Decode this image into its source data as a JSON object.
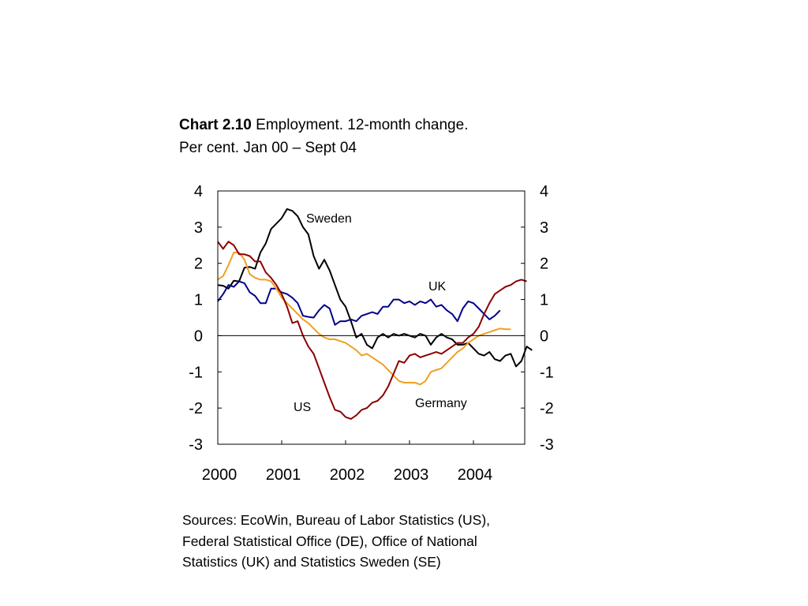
{
  "title": {
    "bold": "Chart 2.10",
    "main": "Employment. 12-month change.",
    "sub": "Per cent. Jan 00 – Sept 04"
  },
  "source": {
    "line1": "Sources: EcoWin, Bureau of Labor Statistics (US),",
    "line2": "Federal Statistical Office (DE), Office of National",
    "line3": "Statistics (UK) and Statistics Sweden (SE)"
  },
  "chart_data": {
    "type": "line",
    "title": "Chart 2.10 Employment. 12-month change.",
    "subtitle": "Per cent. Jan 00 – Sept 04",
    "xlim": [
      "2000-01",
      "2004-12"
    ],
    "ylim": [
      -3,
      4
    ],
    "yticks": [
      4,
      3,
      2,
      1,
      0,
      -1,
      -2,
      -3
    ],
    "xticks": [
      "2000",
      "2001",
      "2002",
      "2003",
      "2004"
    ],
    "zero_line": true,
    "grid": false,
    "secondary_y_axis": true,
    "series": [
      {
        "name": "Sweden",
        "color": "#000000",
        "start": "2000-01",
        "values": [
          1.4,
          1.38,
          1.3,
          1.52,
          1.5,
          1.88,
          1.9,
          1.85,
          2.3,
          2.55,
          2.95,
          3.1,
          3.25,
          3.5,
          3.45,
          3.3,
          3.0,
          2.8,
          2.2,
          1.85,
          2.1,
          1.8,
          1.4,
          1.0,
          0.8,
          0.4,
          -0.05,
          0.05,
          -0.25,
          -0.35,
          -0.05,
          0.05,
          -0.05,
          0.05,
          0.0,
          0.05,
          0.0,
          -0.05,
          0.05,
          0.0,
          -0.25,
          -0.05,
          0.05,
          -0.05,
          -0.1,
          -0.25,
          -0.25,
          -0.2,
          -0.35,
          -0.5,
          -0.55,
          -0.45,
          -0.65,
          -0.7,
          -0.55,
          -0.5,
          -0.85,
          -0.7,
          -0.3,
          -0.4
        ]
      },
      {
        "name": "UK",
        "color": "#00008b",
        "start": "2000-01",
        "values": [
          0.95,
          1.15,
          1.4,
          1.35,
          1.5,
          1.45,
          1.2,
          1.1,
          0.9,
          0.9,
          1.3,
          1.3,
          1.2,
          1.15,
          1.05,
          0.9,
          0.55,
          0.52,
          0.5,
          0.7,
          0.85,
          0.75,
          0.3,
          0.4,
          0.4,
          0.45,
          0.4,
          0.55,
          0.6,
          0.65,
          0.6,
          0.8,
          0.8,
          1.0,
          1.0,
          0.9,
          0.95,
          0.85,
          0.95,
          0.9,
          1.0,
          0.8,
          0.85,
          0.7,
          0.6,
          0.4,
          0.75,
          0.95,
          0.9,
          0.75,
          0.6,
          0.45,
          0.55,
          0.7
        ]
      },
      {
        "name": "Germany",
        "color": "#f0a020",
        "start": "2000-01",
        "values": [
          1.55,
          1.65,
          1.95,
          2.3,
          2.3,
          2.1,
          1.7,
          1.6,
          1.55,
          1.55,
          1.5,
          1.3,
          1.05,
          0.9,
          0.75,
          0.6,
          0.45,
          0.35,
          0.2,
          0.05,
          -0.05,
          -0.1,
          -0.1,
          -0.15,
          -0.2,
          -0.3,
          -0.4,
          -0.55,
          -0.5,
          -0.6,
          -0.7,
          -0.8,
          -0.95,
          -1.1,
          -1.25,
          -1.3,
          -1.3,
          -1.3,
          -1.35,
          -1.25,
          -1.0,
          -0.95,
          -0.9,
          -0.75,
          -0.6,
          -0.45,
          -0.35,
          -0.2,
          -0.1,
          0.0,
          0.05,
          0.1,
          0.15,
          0.2,
          0.18,
          0.18
        ]
      },
      {
        "name": "US",
        "color": "#8b0000",
        "start": "2000-01",
        "values": [
          2.6,
          2.4,
          2.6,
          2.5,
          2.25,
          2.25,
          2.2,
          2.05,
          2.05,
          1.75,
          1.6,
          1.4,
          1.15,
          0.8,
          0.35,
          0.4,
          0.0,
          -0.3,
          -0.5,
          -0.9,
          -1.3,
          -1.7,
          -2.05,
          -2.1,
          -2.25,
          -2.3,
          -2.2,
          -2.05,
          -2.0,
          -1.85,
          -1.8,
          -1.65,
          -1.4,
          -1.05,
          -0.7,
          -0.75,
          -0.55,
          -0.5,
          -0.6,
          -0.55,
          -0.5,
          -0.45,
          -0.5,
          -0.4,
          -0.3,
          -0.2,
          -0.2,
          -0.05,
          0.05,
          0.25,
          0.6,
          0.9,
          1.15,
          1.25,
          1.35,
          1.4,
          1.5,
          1.55,
          1.5
        ]
      }
    ],
    "series_labels": [
      "Sweden",
      "UK",
      "Germany",
      "US"
    ]
  }
}
